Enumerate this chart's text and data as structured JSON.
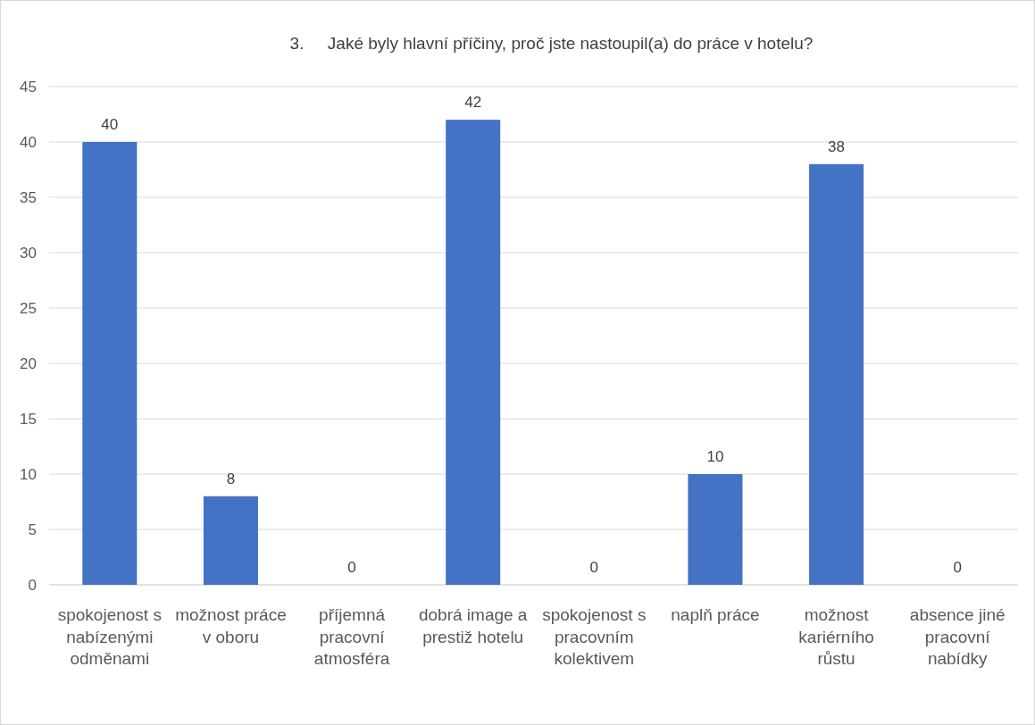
{
  "chart_data": {
    "type": "bar",
    "title": "3.     Jaké byly hlavní příčiny, proč jste nastoupil(a) do práce v hotelu?",
    "categories": [
      "spokojenost s nabízenými odměnami",
      "možnost práce v oboru",
      "příjemná pracovní atmosféra",
      "dobrá image a prestiž hotelu",
      "spokojenost s pracovním kolektivem",
      "naplň práce",
      "možnost kariérního růstu",
      "absence jiné pracovní nabídky"
    ],
    "values": [
      40,
      8,
      0,
      42,
      0,
      10,
      38,
      0
    ],
    "color": "#4472c4",
    "ylim": [
      0,
      45
    ],
    "yticks": [
      0,
      5,
      10,
      15,
      20,
      25,
      30,
      35,
      40,
      45
    ],
    "grid": "y",
    "data_labels": true
  }
}
